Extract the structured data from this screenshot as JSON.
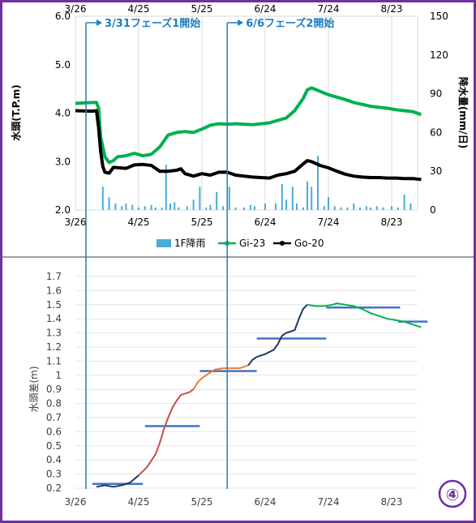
{
  "colors": {
    "frame": "#7030a0",
    "phase_line": "#1f7ec1",
    "phase_label": "#1f7ec1",
    "gi23": "#00b050",
    "go20": "#000000",
    "rain": "#4bacd6",
    "seg_start": "#1f3864",
    "seg_red": "#c0504d",
    "seg_orange": "#ed7d31",
    "seg_navy": "#1f3864",
    "seg_green": "#00b050",
    "avg_bar": "#4472c4",
    "badge": "#7030a0"
  },
  "annotations": {
    "phase1": {
      "label": "3/31フェーズ1開始",
      "date": "3/31"
    },
    "phase2": {
      "label": "6/6フェーズ2開始",
      "date": "6/6"
    }
  },
  "badge": "④",
  "chart_data": [
    {
      "type": "line",
      "x_ticks": [
        "3/26",
        "4/25",
        "5/25",
        "6/24",
        "7/24",
        "8/23"
      ],
      "ylabel": "水頭(T.P.m)",
      "y2label": "降水量(mm/日)",
      "ylim": [
        2.0,
        6.0
      ],
      "y_ticks": [
        "2.0",
        "3.0",
        "4.0",
        "5.0",
        "6.0"
      ],
      "y2lim": [
        0,
        150
      ],
      "y2_ticks": [
        "0",
        "30",
        "60",
        "90",
        "120",
        "150"
      ],
      "legend": {
        "placement": "bottom",
        "entries": [
          "1F降雨",
          "Gi-23",
          "Go-20"
        ]
      },
      "grid": "vertical",
      "series": [
        {
          "name": "Gi-23",
          "axis": "left",
          "points": [
            [
              0,
              4.2
            ],
            [
              8,
              4.22
            ],
            [
              10,
              4.22
            ],
            [
              11,
              4.1
            ],
            [
              12,
              3.5
            ],
            [
              14,
              3.1
            ],
            [
              16,
              2.98
            ],
            [
              18,
              3.02
            ],
            [
              20,
              3.1
            ],
            [
              24,
              3.12
            ],
            [
              28,
              3.17
            ],
            [
              32,
              3.12
            ],
            [
              36,
              3.15
            ],
            [
              40,
              3.3
            ],
            [
              44,
              3.55
            ],
            [
              48,
              3.6
            ],
            [
              52,
              3.62
            ],
            [
              56,
              3.6
            ],
            [
              60,
              3.67
            ],
            [
              64,
              3.75
            ],
            [
              68,
              3.78
            ],
            [
              72,
              3.77
            ],
            [
              76,
              3.78
            ],
            [
              80,
              3.77
            ],
            [
              84,
              3.76
            ],
            [
              88,
              3.78
            ],
            [
              92,
              3.8
            ],
            [
              96,
              3.85
            ],
            [
              100,
              3.9
            ],
            [
              104,
              4.05
            ],
            [
              108,
              4.3
            ],
            [
              110,
              4.48
            ],
            [
              112,
              4.52
            ],
            [
              116,
              4.45
            ],
            [
              120,
              4.38
            ],
            [
              124,
              4.33
            ],
            [
              128,
              4.28
            ],
            [
              132,
              4.22
            ],
            [
              136,
              4.18
            ],
            [
              140,
              4.14
            ],
            [
              144,
              4.12
            ],
            [
              148,
              4.1
            ],
            [
              152,
              4.07
            ],
            [
              156,
              4.05
            ],
            [
              160,
              4.03
            ],
            [
              164,
              3.97
            ]
          ]
        },
        {
          "name": "Go-20",
          "axis": "left",
          "points": [
            [
              0,
              4.05
            ],
            [
              8,
              4.04
            ],
            [
              10,
              4.05
            ],
            [
              11,
              3.7
            ],
            [
              12,
              3.2
            ],
            [
              13,
              2.9
            ],
            [
              14,
              2.78
            ],
            [
              16,
              2.76
            ],
            [
              18,
              2.88
            ],
            [
              24,
              2.86
            ],
            [
              28,
              2.93
            ],
            [
              32,
              2.94
            ],
            [
              36,
              2.92
            ],
            [
              40,
              2.8
            ],
            [
              44,
              2.8
            ],
            [
              48,
              2.82
            ],
            [
              50,
              2.85
            ],
            [
              52,
              2.75
            ],
            [
              56,
              2.7
            ],
            [
              60,
              2.75
            ],
            [
              64,
              2.72
            ],
            [
              68,
              2.78
            ],
            [
              72,
              2.78
            ],
            [
              76,
              2.72
            ],
            [
              80,
              2.7
            ],
            [
              84,
              2.68
            ],
            [
              88,
              2.67
            ],
            [
              92,
              2.66
            ],
            [
              96,
              2.72
            ],
            [
              100,
              2.75
            ],
            [
              104,
              2.8
            ],
            [
              108,
              2.95
            ],
            [
              110,
              3.02
            ],
            [
              112,
              3.0
            ],
            [
              116,
              2.92
            ],
            [
              120,
              2.87
            ],
            [
              124,
              2.8
            ],
            [
              128,
              2.74
            ],
            [
              132,
              2.7
            ],
            [
              136,
              2.68
            ],
            [
              140,
              2.67
            ],
            [
              144,
              2.67
            ],
            [
              148,
              2.66
            ],
            [
              152,
              2.66
            ],
            [
              156,
              2.65
            ],
            [
              160,
              2.65
            ],
            [
              164,
              2.63
            ]
          ]
        },
        {
          "name": "1F降雨",
          "type": "bar",
          "axis": "right",
          "points": [
            [
              13,
              18
            ],
            [
              16,
              10
            ],
            [
              19,
              5
            ],
            [
              22,
              3
            ],
            [
              24,
              5
            ],
            [
              27,
              4
            ],
            [
              30,
              2
            ],
            [
              33,
              3
            ],
            [
              36,
              4
            ],
            [
              38,
              2
            ],
            [
              41,
              2
            ],
            [
              43,
              35
            ],
            [
              45,
              5
            ],
            [
              47,
              6
            ],
            [
              49,
              2
            ],
            [
              53,
              3
            ],
            [
              56,
              8
            ],
            [
              59,
              18
            ],
            [
              62,
              2
            ],
            [
              64,
              4
            ],
            [
              67,
              14
            ],
            [
              70,
              3
            ],
            [
              73,
              18
            ],
            [
              76,
              2
            ],
            [
              80,
              2
            ],
            [
              83,
              4
            ],
            [
              85,
              3
            ],
            [
              90,
              5
            ],
            [
              95,
              5
            ],
            [
              98,
              20
            ],
            [
              100,
              8
            ],
            [
              103,
              18
            ],
            [
              105,
              5
            ],
            [
              108,
              2
            ],
            [
              110,
              22
            ],
            [
              112,
              18
            ],
            [
              115,
              42
            ],
            [
              118,
              3
            ],
            [
              120,
              10
            ],
            [
              123,
              3
            ],
            [
              126,
              2
            ],
            [
              129,
              2
            ],
            [
              132,
              5
            ],
            [
              135,
              2
            ],
            [
              138,
              3
            ],
            [
              140,
              2
            ],
            [
              143,
              3
            ],
            [
              146,
              2
            ],
            [
              150,
              3
            ],
            [
              153,
              2
            ],
            [
              156,
              12
            ],
            [
              159,
              5
            ]
          ]
        }
      ]
    },
    {
      "type": "line",
      "x_ticks": [
        "3/26",
        "4/25",
        "5/25",
        "6/24",
        "7/24",
        "8/23"
      ],
      "ylabel": "水頭差(m)",
      "ylim": [
        0.2,
        1.7
      ],
      "y_ticks": [
        "0.2",
        "0.3",
        "0.4",
        "0.5",
        "0.6",
        "0.7",
        "0.8",
        "0.9",
        "1",
        "1.1",
        "1.2",
        "1.3",
        "1.4",
        "1.5",
        "1.6",
        "1.7"
      ],
      "grid": "horizontal",
      "series": [
        {
          "segment": "start",
          "points": [
            [
              10,
              0.21
            ],
            [
              14,
              0.22
            ],
            [
              18,
              0.21
            ],
            [
              22,
              0.22
            ],
            [
              26,
              0.24
            ],
            [
              30,
              0.29
            ]
          ]
        },
        {
          "segment": "rise1",
          "points": [
            [
              30,
              0.29
            ],
            [
              34,
              0.35
            ],
            [
              38,
              0.44
            ],
            [
              40,
              0.52
            ],
            [
              42,
              0.62
            ],
            [
              44,
              0.7
            ],
            [
              46,
              0.77
            ],
            [
              48,
              0.82
            ],
            [
              50,
              0.86
            ],
            [
              52,
              0.87
            ],
            [
              54,
              0.88
            ],
            [
              56,
              0.9
            ]
          ]
        },
        {
          "segment": "rise2",
          "points": [
            [
              56,
              0.9
            ],
            [
              58,
              0.95
            ],
            [
              60,
              0.98
            ],
            [
              62,
              1.0
            ],
            [
              64,
              1.02
            ],
            [
              66,
              1.04
            ],
            [
              70,
              1.05
            ],
            [
              74,
              1.05
            ],
            [
              78,
              1.05
            ],
            [
              82,
              1.07
            ]
          ]
        },
        {
          "segment": "rise3",
          "points": [
            [
              82,
              1.07
            ],
            [
              84,
              1.11
            ],
            [
              86,
              1.13
            ],
            [
              90,
              1.15
            ],
            [
              94,
              1.18
            ],
            [
              96,
              1.22
            ],
            [
              98,
              1.28
            ],
            [
              100,
              1.3
            ],
            [
              102,
              1.31
            ],
            [
              104,
              1.32
            ],
            [
              106,
              1.4
            ],
            [
              108,
              1.47
            ],
            [
              110,
              1.5
            ]
          ]
        },
        {
          "segment": "plateau",
          "points": [
            [
              110,
              1.5
            ],
            [
              114,
              1.49
            ],
            [
              118,
              1.49
            ],
            [
              122,
              1.5
            ],
            [
              124,
              1.51
            ],
            [
              128,
              1.5
            ],
            [
              132,
              1.49
            ],
            [
              136,
              1.47
            ],
            [
              140,
              1.44
            ],
            [
              144,
              1.42
            ],
            [
              148,
              1.4
            ],
            [
              152,
              1.39
            ],
            [
              156,
              1.38
            ],
            [
              160,
              1.36
            ],
            [
              164,
              1.34
            ]
          ]
        }
      ],
      "averages": [
        {
          "x": [
            8,
            32
          ],
          "y": 0.23
        },
        {
          "x": [
            33,
            59
          ],
          "y": 0.64
        },
        {
          "x": [
            59,
            86
          ],
          "y": 1.03
        },
        {
          "x": [
            86,
            119
          ],
          "y": 1.26
        },
        {
          "x": [
            119,
            154
          ],
          "y": 1.48
        },
        {
          "x": [
            153,
            167
          ],
          "y": 1.38
        }
      ]
    }
  ]
}
